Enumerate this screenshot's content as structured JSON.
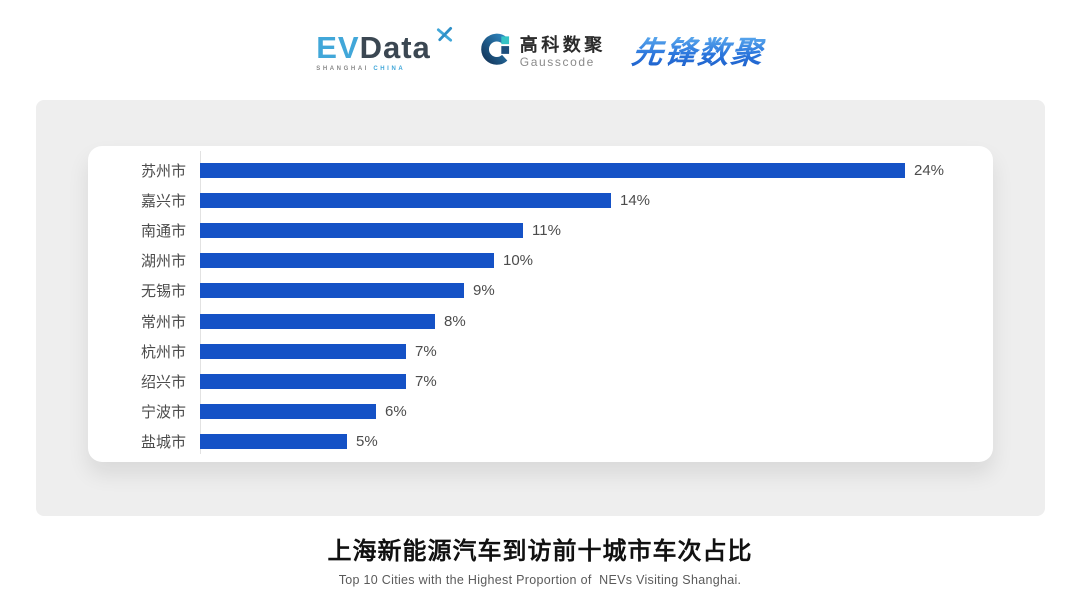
{
  "header": {
    "evdata": {
      "part_ev": "EV",
      "part_data": "Data",
      "tagline_left": "SHANGHAI",
      "tagline_right": "CHINA"
    },
    "gausscode": {
      "name_cn": "高科数聚",
      "name_en": "Gausscode"
    },
    "pioneer": {
      "name_cn": "先锋数聚"
    }
  },
  "chart_data": {
    "type": "bar",
    "orientation": "horizontal",
    "categories": [
      "苏州市",
      "嘉兴市",
      "南通市",
      "湖州市",
      "无锡市",
      "常州市",
      "杭州市",
      "绍兴市",
      "宁波市",
      "盐城市"
    ],
    "values": [
      24,
      14,
      11,
      10,
      9,
      8,
      7,
      7,
      6,
      5
    ],
    "unit": "%",
    "value_label_position": "end-of-bar",
    "bar_color": "#1552c6",
    "axis_line_color": "#e2e2e2",
    "xlim": [
      0,
      27
    ],
    "grid": "off",
    "legend": "none",
    "title": "上海新能源汽车到访前十城市车次占比",
    "subtitle": "Top 10 Cities with the Highest Proportion of  NEVs Visiting Shanghai."
  },
  "colors": {
    "panel_bg": "#eeeeee",
    "card_bg": "#ffffff",
    "evdata_blue": "#41a7d9",
    "evdata_dark": "#3b4752",
    "pioneer_blue": "#2c77dd",
    "label_gray": "#4c4c4c"
  }
}
